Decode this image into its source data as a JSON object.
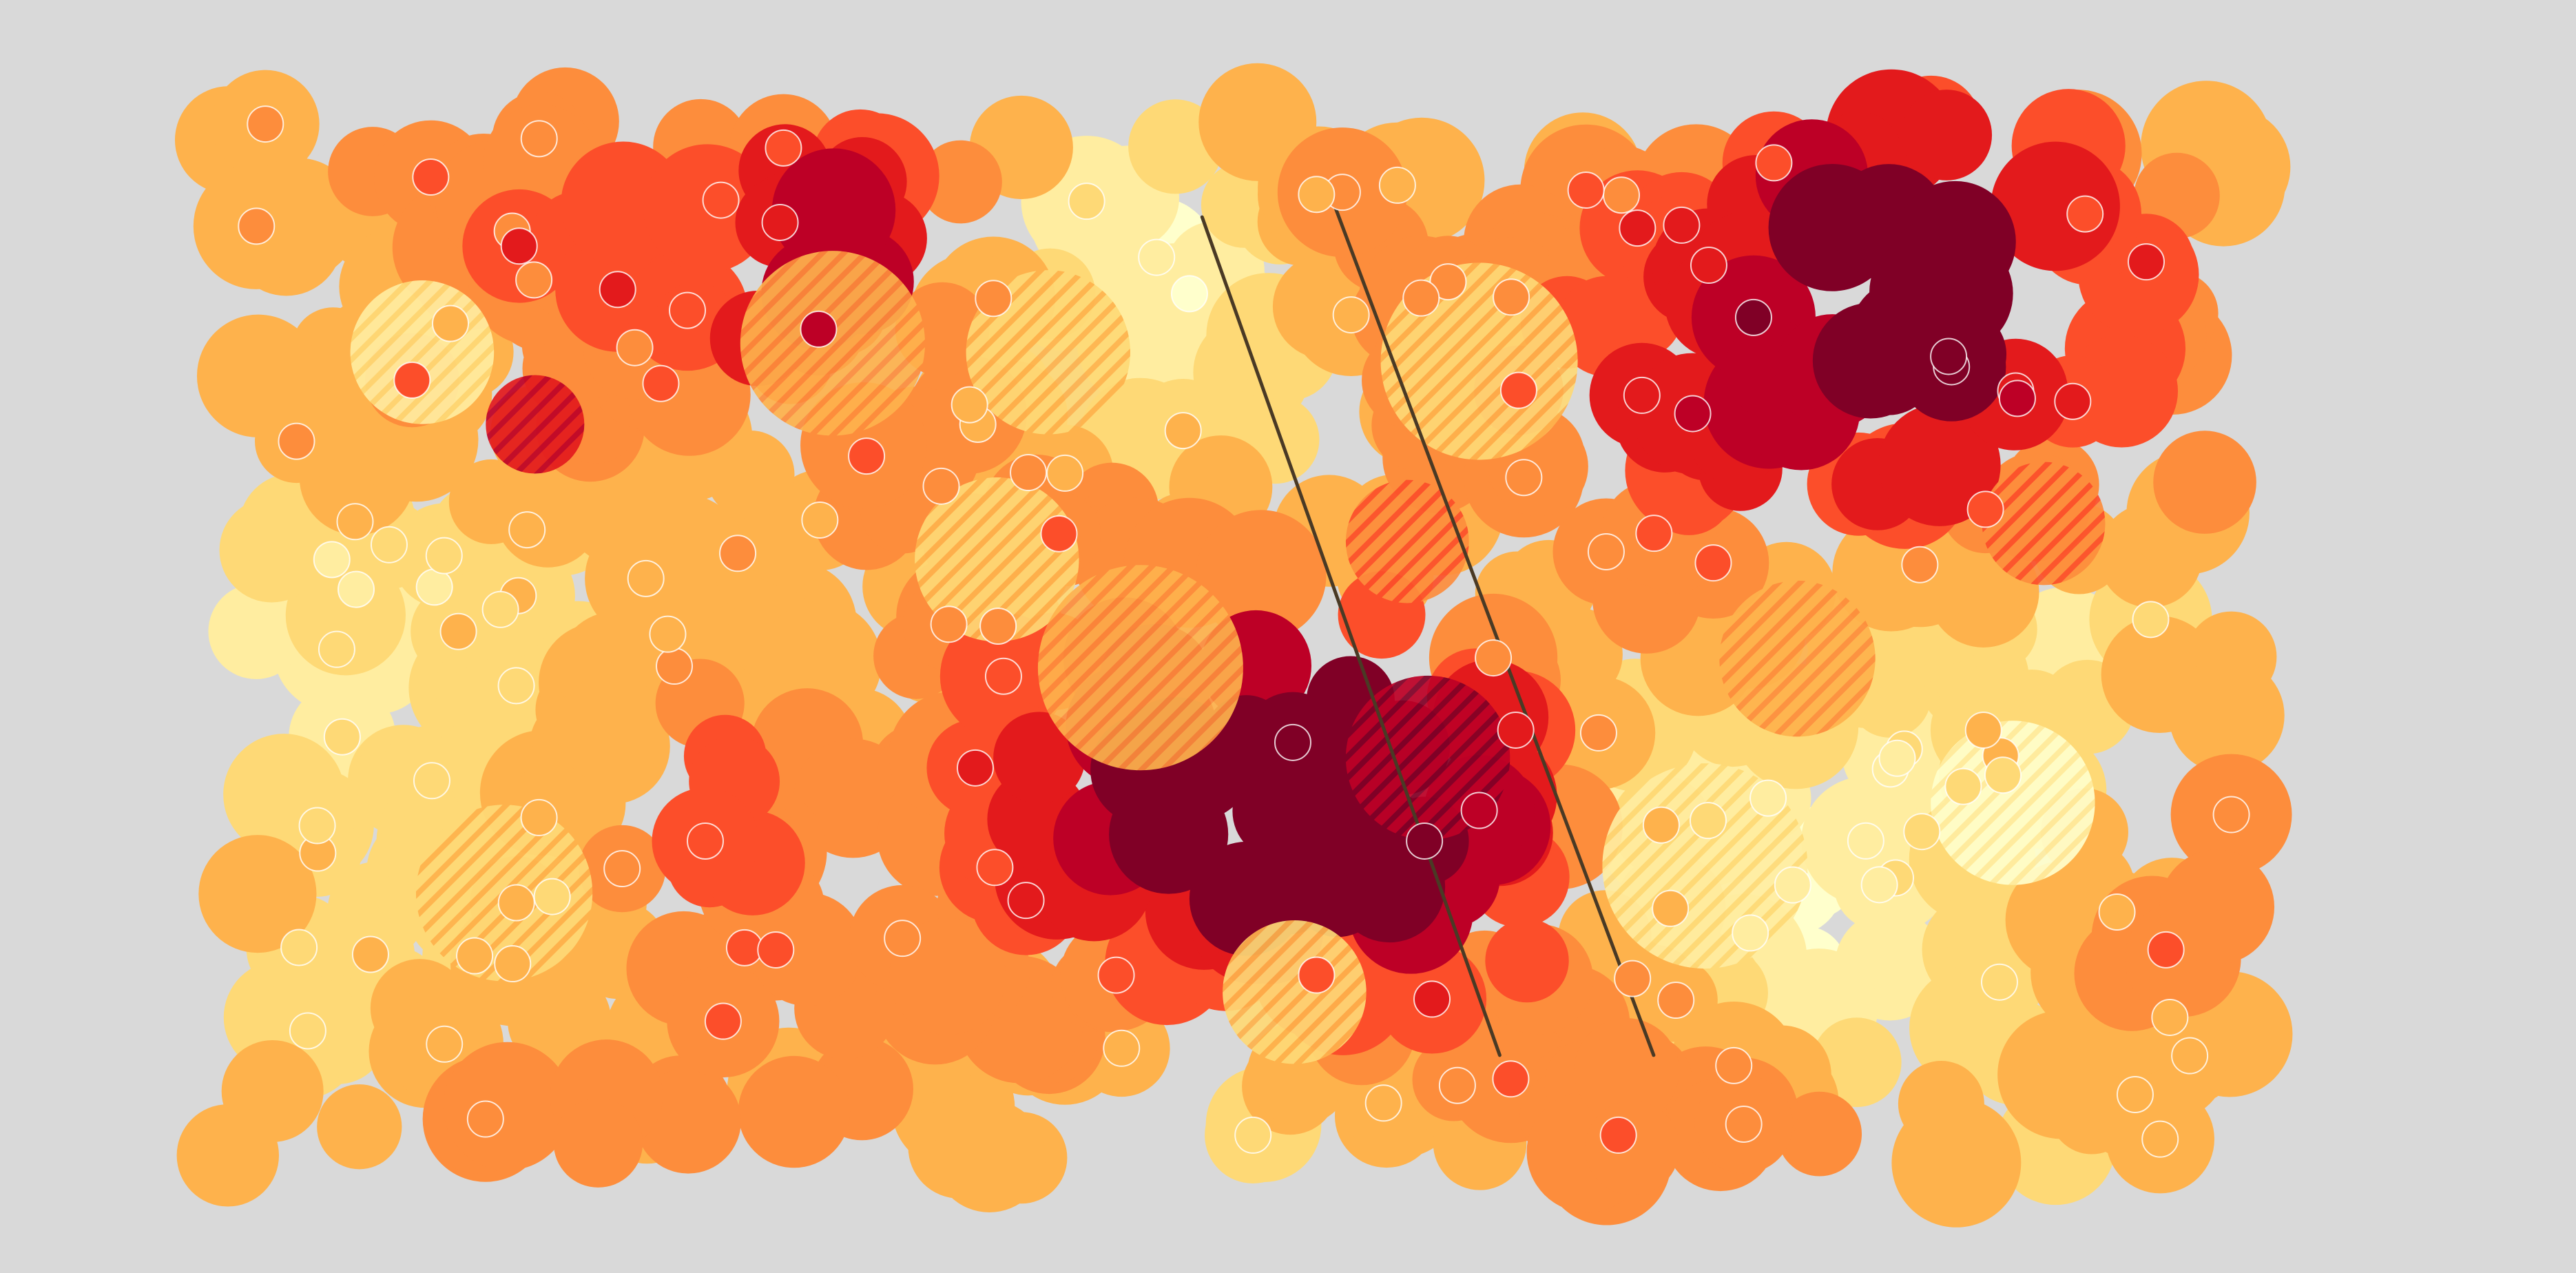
{
  "chart_data": {
    "type": "heatmap",
    "title": "",
    "xlabel": "",
    "ylabel": "",
    "xlim": [
      0,
      100
    ],
    "ylim": [
      0,
      60
    ],
    "grid": false,
    "legend": "none",
    "colormap": [
      "#ffffcc",
      "#ffeda0",
      "#fed976",
      "#feb24c",
      "#fd8d3c",
      "#fc4e2a",
      "#e31a1c",
      "#bd0026",
      "#800026"
    ],
    "background": "#d9d9d9",
    "seed": 7,
    "cell_count": 660,
    "marker_count": 148,
    "hatch_regions": [
      {
        "center": [
          16,
          42
        ],
        "radius": 2.4,
        "level": 7
      },
      {
        "center": [
          10.5,
          46
        ],
        "radius": 3.5,
        "level": 2
      },
      {
        "center": [
          30.5,
          46.5
        ],
        "radius": 4.5,
        "level": 4
      },
      {
        "center": [
          41,
          46
        ],
        "radius": 4,
        "level": 3
      },
      {
        "center": [
          62,
          45.5
        ],
        "radius": 4.8,
        "level": 3
      },
      {
        "center": [
          89.5,
          36.5
        ],
        "radius": 3,
        "level": 5
      },
      {
        "center": [
          58.5,
          35.5
        ],
        "radius": 3,
        "level": 5
      },
      {
        "center": [
          38.5,
          34.5
        ],
        "radius": 4,
        "level": 3
      },
      {
        "center": [
          45.5,
          28.5
        ],
        "radius": 5,
        "level": 4
      },
      {
        "center": [
          77.5,
          29
        ],
        "radius": 3.8,
        "level": 4
      },
      {
        "center": [
          59.5,
          23.5
        ],
        "radius": 4,
        "level": 8
      },
      {
        "center": [
          14.5,
          16
        ],
        "radius": 4.3,
        "level": 3
      },
      {
        "center": [
          73,
          17.5
        ],
        "radius": 5,
        "level": 2
      },
      {
        "center": [
          88,
          21
        ],
        "radius": 4,
        "level": 1
      },
      {
        "center": [
          53,
          10.5
        ],
        "radius": 3.5,
        "level": 3
      }
    ],
    "trend_lines": [
      {
        "start": [
          48.5,
          53.5
        ],
        "end": [
          63,
          7
        ]
      },
      {
        "start": [
          55,
          54
        ],
        "end": [
          70.5,
          7
        ]
      }
    ],
    "hot_spots": [
      {
        "center": [
          57.5,
          21.5
        ],
        "radius": 9,
        "strength": 1.0
      },
      {
        "center": [
          82.5,
          48
        ],
        "radius": 11,
        "strength": 0.95
      },
      {
        "center": [
          32,
          52
        ],
        "radius": 7,
        "strength": 0.8
      },
      {
        "center": [
          45,
          19
        ],
        "radius": 9,
        "strength": 0.55
      },
      {
        "center": [
          24,
          22
        ],
        "radius": 6,
        "strength": 0.35
      }
    ],
    "cool_spots": [
      {
        "center": [
          6,
          33
        ],
        "radius": 10,
        "strength": 0.55
      },
      {
        "center": [
          79,
          13
        ],
        "radius": 10,
        "strength": 0.6
      },
      {
        "center": [
          87,
          27
        ],
        "radius": 9,
        "strength": 0.45
      },
      {
        "center": [
          46,
          52
        ],
        "radius": 7,
        "strength": 0.45
      },
      {
        "center": [
          6,
          7
        ],
        "radius": 6,
        "strength": 0.5
      }
    ]
  }
}
